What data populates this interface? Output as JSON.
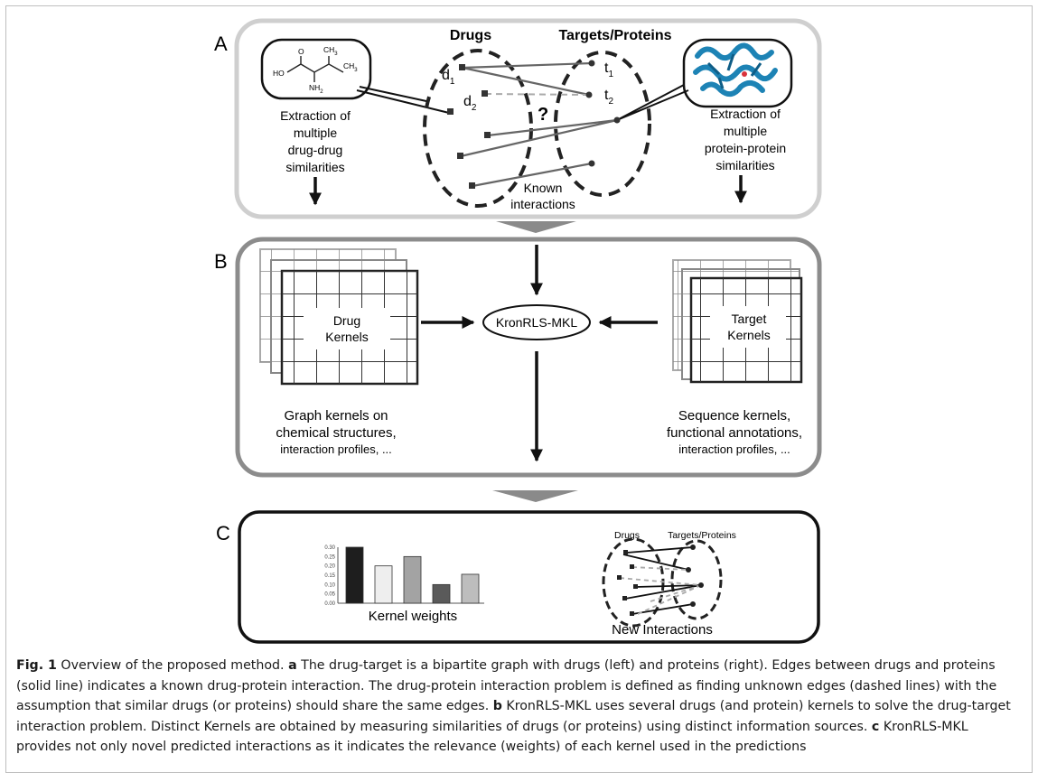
{
  "panel_a": {
    "label": "A",
    "molecule": {
      "ho": "HO",
      "o": "O",
      "nh2": "NH",
      "nh2_sub": "2",
      "ch3_top": "CH",
      "ch3_top_sub": "3",
      "ch3_right": "CH",
      "ch3_right_sub": "3"
    },
    "left_text": [
      "Extraction of",
      "multiple",
      "drug-drug",
      "similarities"
    ],
    "right_text": [
      "Extraction of",
      "multiple",
      "protein-protein",
      "similarities"
    ],
    "drugs_title": "Drugs",
    "targets_title": "Targets/Proteins",
    "d1": "d",
    "d1_sub": "1",
    "d2": "d",
    "d2_sub": "2",
    "t1": "t",
    "t1_sub": "1",
    "t2": "t",
    "t2_sub": "2",
    "question": "?",
    "known": [
      "Known",
      "interactions"
    ]
  },
  "panel_b": {
    "label": "B",
    "drug_kernels": [
      "Drug",
      "Kernels"
    ],
    "target_kernels": [
      "Target",
      "Kernels"
    ],
    "center": "KronRLS-MKL",
    "left_desc": [
      "Graph kernels on",
      "chemical structures,",
      "interaction profiles, ..."
    ],
    "right_desc": [
      "Sequence kernels,",
      "functional annotations,",
      "interaction profiles, ..."
    ]
  },
  "panel_c": {
    "label": "C",
    "bar_title": "Kernel weights",
    "net_title": "New Interactions",
    "net_drugs": "Drugs",
    "net_targets": "Targets/Proteins"
  },
  "chart_data": {
    "type": "bar",
    "title": "",
    "xlabel": "Kernel weights",
    "ylabel": "",
    "ylim": [
      0,
      0.3
    ],
    "yticks": [
      "0.30",
      "0.25",
      "0.20",
      "0.15",
      "0.10",
      "0.05",
      "0.00"
    ],
    "values": [
      0.3,
      0.2,
      0.25,
      0.1,
      0.155
    ],
    "colors": [
      "#1e1e1e",
      "#eeeeee",
      "#a3a3a3",
      "#5a5a5a",
      "#bdbdbd"
    ]
  },
  "caption": {
    "fig": "Fig. 1",
    "p1": " Overview of the proposed method. ",
    "a": "a",
    "p2": " The drug-target is a bipartite graph with drugs (left) and proteins (right). Edges between drugs and proteins (solid line) indicates a known drug-protein interaction. The drug-protein interaction problem is defined as finding unknown edges (dashed lines) with the assumption that similar drugs (or proteins) should share the same edges. ",
    "b": "b",
    "p3": " KronRLS-MKL uses several drugs (and protein) kernels to solve the drug-target interaction problem. Distinct Kernels are obtained by measuring similarities of drugs (or proteins) using distinct information sources. ",
    "c": "c",
    "p4": " KronRLS-MKL provides not only novel predicted interactions as it indicates the relevance (weights) of each kernel used in the predictions"
  }
}
